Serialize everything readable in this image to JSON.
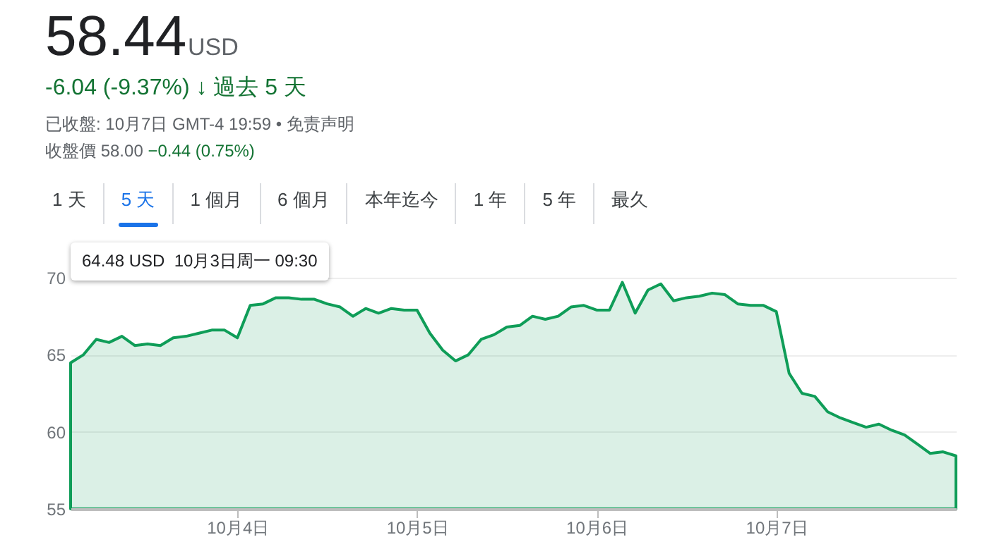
{
  "chart_data": {
    "type": "area",
    "title": "58.44",
    "annotations": [
      "USD",
      "-6.04 (-9.37%) ↓ 過去 5 天",
      "已收盤: 10月7日 GMT-4 19:59 • 免责声明",
      "收盤價 58.00",
      "−0.44 (0.75%)",
      "1 天",
      "5 天",
      "1 個月",
      "6 個月",
      "本年迄今",
      "1 年",
      "5 年",
      "最久",
      "64.48 USD  10月3日周一 09:30"
    ],
    "categories": [
      null,
      null,
      null,
      null,
      null,
      null,
      null,
      null,
      null,
      null,
      null,
      null,
      null,
      "10月4日",
      null,
      null,
      null,
      null,
      null,
      null,
      null,
      null,
      null,
      null,
      null,
      null,
      null,
      "10月5日",
      null,
      null,
      null,
      null,
      null,
      null,
      null,
      null,
      null,
      null,
      null,
      null,
      null,
      "10月6日",
      null,
      null,
      null,
      null,
      null,
      null,
      null,
      null,
      null,
      null,
      null,
      null,
      null,
      "10月7日",
      null,
      null,
      null,
      null,
      null,
      null,
      null,
      null,
      null,
      null,
      null,
      null,
      null,
      null
    ],
    "series": [
      {
        "color": "#0f9d58",
        "values": [
          64.48,
          65.0,
          66.0,
          65.8,
          66.2,
          65.6,
          65.7,
          65.6,
          66.1,
          66.2,
          66.4,
          66.6,
          66.6,
          66.1,
          68.2,
          68.3,
          68.7,
          68.7,
          68.6,
          68.6,
          68.3,
          68.1,
          67.5,
          68.0,
          67.7,
          68.0,
          67.9,
          67.9,
          66.4,
          65.3,
          64.6,
          65.0,
          66.0,
          66.3,
          66.8,
          66.9,
          67.5,
          67.3,
          67.5,
          68.1,
          68.2,
          67.9,
          67.9,
          69.7,
          67.7,
          69.2,
          69.6,
          68.5,
          68.7,
          68.8,
          69.0,
          68.9,
          68.3,
          68.2,
          68.2,
          67.8,
          63.8,
          62.5,
          62.3,
          61.3,
          60.9,
          60.6,
          60.3,
          60.5,
          60.1,
          59.8,
          59.2,
          58.6,
          58.7,
          58.44
        ]
      }
    ],
    "ylim": [
      55,
      70
    ],
    "yticks": [
      55,
      60,
      65,
      70
    ],
    "grid": "y"
  }
}
